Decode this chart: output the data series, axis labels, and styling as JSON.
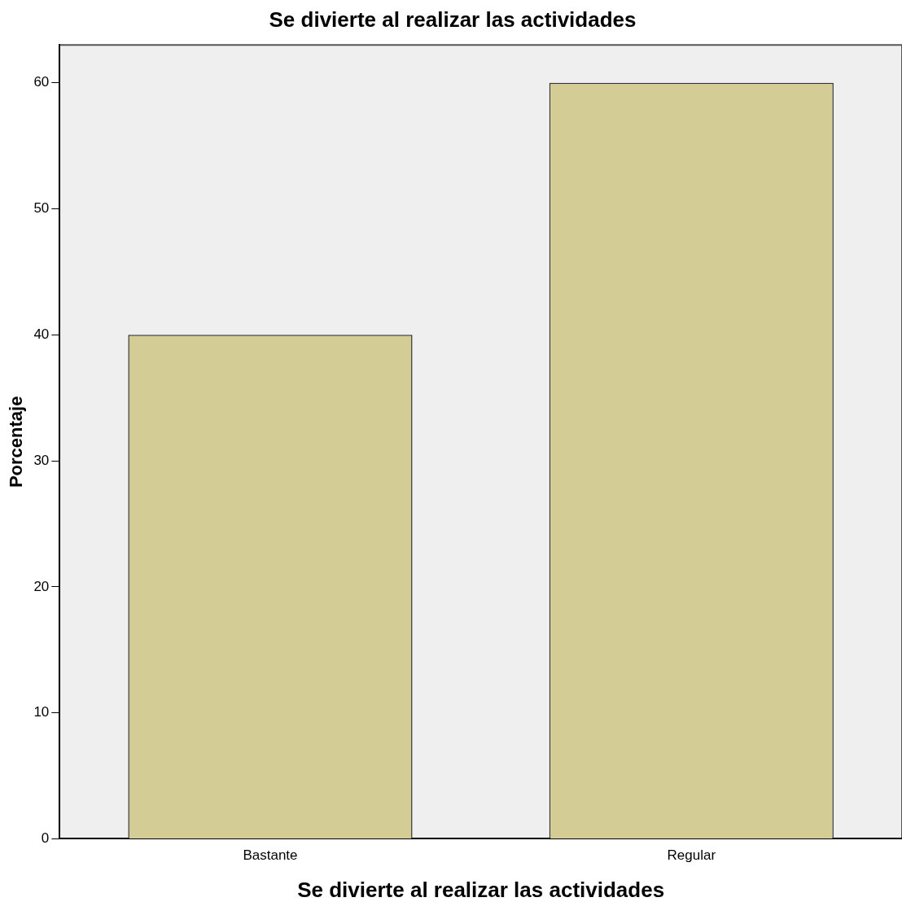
{
  "chart_data": {
    "type": "bar",
    "title": "Se divierte al realizar las actividades",
    "xlabel": "Se divierte al realizar las actividades",
    "ylabel": "Porcentaje",
    "categories": [
      "Bastante",
      "Regular"
    ],
    "values": [
      40,
      60
    ],
    "color": "#d3cd95",
    "ylim": [
      0,
      63
    ],
    "yticks": [
      0,
      10,
      20,
      30,
      40,
      50,
      60
    ],
    "grid": false,
    "legend": false
  }
}
